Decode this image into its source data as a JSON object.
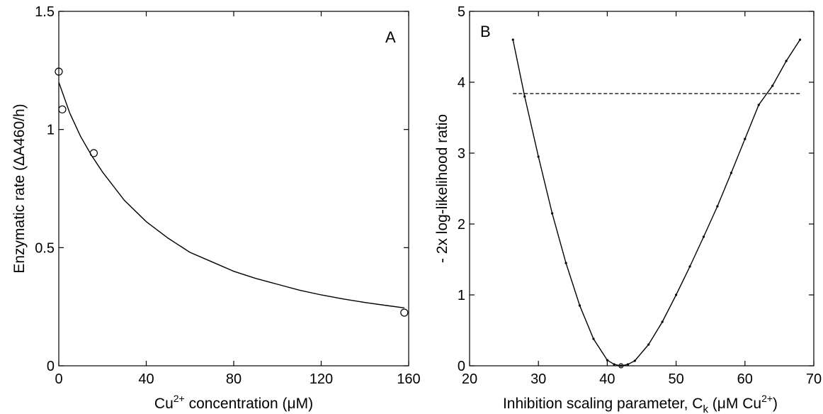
{
  "chart_data": [
    {
      "type": "scatter",
      "panel_label": "A",
      "xlabel_parts": [
        "Cu",
        "2+",
        " concentration (",
        "μ",
        "M)"
      ],
      "ylabel": "Enzymatic rate (ΔA460/h)",
      "xlim": [
        0,
        160
      ],
      "ylim": [
        0,
        1.5
      ],
      "xticks": [
        0,
        40,
        80,
        120,
        160
      ],
      "yticks": [
        0,
        0.5,
        1,
        1.5
      ],
      "xtick_labels": [
        "0",
        "40",
        "80",
        "120",
        "160"
      ],
      "ytick_labels": [
        "0",
        "0.5",
        "1",
        "1.5"
      ],
      "points": {
        "x": [
          0,
          1.6,
          16,
          158
        ],
        "y": [
          1.245,
          1.085,
          0.9,
          0.225
        ]
      },
      "fit_curve": {
        "x": [
          0,
          5,
          10,
          15,
          20,
          30,
          40,
          50,
          60,
          70,
          80,
          90,
          100,
          110,
          120,
          130,
          140,
          150,
          158
        ],
        "y": [
          1.2,
          1.07,
          0.97,
          0.89,
          0.82,
          0.7,
          0.61,
          0.54,
          0.48,
          0.44,
          0.4,
          0.37,
          0.345,
          0.32,
          0.3,
          0.283,
          0.268,
          0.255,
          0.245
        ]
      },
      "grid": false
    },
    {
      "type": "line",
      "panel_label": "B",
      "xlabel_parts": [
        "Inhibition scaling parameter, C",
        "k",
        " (",
        "μ",
        "M Cu",
        "2+",
        ")"
      ],
      "ylabel": "- 2x log-likelihood ratio",
      "xlim": [
        20,
        70
      ],
      "ylim": [
        0,
        5
      ],
      "xticks": [
        20,
        30,
        40,
        50,
        60,
        70
      ],
      "yticks": [
        0,
        1,
        2,
        3,
        4,
        5
      ],
      "xtick_labels": [
        "20",
        "30",
        "40",
        "50",
        "60",
        "70"
      ],
      "ytick_labels": [
        "0",
        "1",
        "2",
        "3",
        "4",
        "5"
      ],
      "curve": {
        "x": [
          26.3,
          28,
          30,
          32,
          34,
          36,
          38,
          40,
          41,
          42,
          43,
          44,
          46,
          48,
          50,
          52,
          54,
          56,
          58,
          60,
          62,
          64,
          66,
          68
        ],
        "y": [
          4.6,
          3.8,
          2.95,
          2.15,
          1.45,
          0.85,
          0.38,
          0.08,
          0.02,
          0.0,
          0.02,
          0.07,
          0.3,
          0.62,
          1.0,
          1.4,
          1.82,
          2.25,
          2.72,
          3.2,
          3.68,
          3.95,
          4.3,
          4.6
        ]
      },
      "threshold": {
        "y": 3.84,
        "x_start": 26.3,
        "x_end": 68
      },
      "grid": false
    }
  ]
}
